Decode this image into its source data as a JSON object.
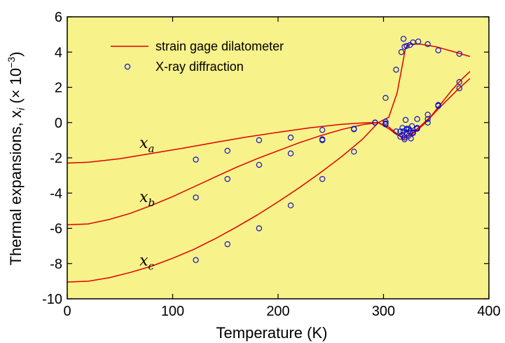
{
  "chart_data": {
    "type": "scatter",
    "title": "",
    "xlabel": "Temperature (K)",
    "ylabel": "Thermal expansions, x",
    "ylabel_sub": "i",
    "ylabel_unit_open": " (× 10",
    "ylabel_exp": "−3",
    "ylabel_unit_close": ")",
    "xlim": [
      0,
      400
    ],
    "ylim": [
      -10,
      6
    ],
    "xticks": [
      0,
      100,
      200,
      300,
      400
    ],
    "yticks": [
      -10,
      -8,
      -6,
      -4,
      -2,
      0,
      2,
      4,
      6
    ],
    "grid": false,
    "background": "#f7f28a",
    "line_color": "#e00000",
    "marker_color": "#1010c8",
    "legend": {
      "position": "top-left",
      "entries": [
        {
          "label": "strain gage dilatometer",
          "kind": "line"
        },
        {
          "label": "X-ray diffraction",
          "kind": "marker"
        }
      ]
    },
    "curve_labels": [
      {
        "main": "x",
        "sub": "a",
        "x": 22,
        "y": -1.45
      },
      {
        "main": "x",
        "sub": "b",
        "x": 22,
        "y": -4.5
      },
      {
        "main": "x",
        "sub": "c",
        "x": 22,
        "y": -8.1
      }
    ],
    "series": [
      {
        "curve": "a",
        "line": [
          [
            0,
            -2.3
          ],
          [
            20,
            -2.25
          ],
          [
            50,
            -2.05
          ],
          [
            80,
            -1.75
          ],
          [
            110,
            -1.45
          ],
          [
            140,
            -1.13
          ],
          [
            170,
            -0.82
          ],
          [
            200,
            -0.55
          ],
          [
            230,
            -0.3
          ],
          [
            260,
            -0.1
          ],
          [
            280,
            -0.02
          ],
          [
            295,
            0
          ],
          [
            305,
            0.3
          ],
          [
            313,
            1.7
          ],
          [
            318,
            3.3
          ],
          [
            321,
            4.25
          ],
          [
            325,
            4.45
          ],
          [
            335,
            4.45
          ],
          [
            350,
            4.3
          ],
          [
            365,
            4.05
          ],
          [
            382,
            3.75
          ]
        ],
        "points": [
          [
            122,
            -2.1
          ],
          [
            152,
            -1.6
          ],
          [
            182,
            -1.0
          ],
          [
            212,
            -0.85
          ],
          [
            242,
            -0.42
          ],
          [
            242,
            -1.0
          ],
          [
            272,
            -0.35
          ],
          [
            292,
            0.0
          ],
          [
            302,
            0.05
          ],
          [
            312,
            -0.5
          ],
          [
            316,
            -0.8
          ],
          [
            319,
            -0.5
          ],
          [
            322,
            -0.35
          ],
          [
            325,
            -0.5
          ],
          [
            328,
            -0.55
          ],
          [
            332,
            -0.3
          ],
          [
            342,
            0.0
          ],
          [
            352,
            1.0
          ],
          [
            372,
            1.95
          ],
          [
            302,
            1.4
          ],
          [
            312,
            3.0
          ],
          [
            317,
            4.0
          ],
          [
            319,
            4.75
          ],
          [
            320,
            4.3
          ],
          [
            322,
            4.35
          ],
          [
            325,
            4.4
          ],
          [
            328,
            4.55
          ],
          [
            333,
            4.6
          ],
          [
            342,
            4.45
          ],
          [
            352,
            4.1
          ],
          [
            372,
            3.9
          ]
        ]
      },
      {
        "curve": "b",
        "line": [
          [
            0,
            -5.8
          ],
          [
            20,
            -5.75
          ],
          [
            40,
            -5.5
          ],
          [
            60,
            -5.15
          ],
          [
            80,
            -4.7
          ],
          [
            100,
            -4.2
          ],
          [
            120,
            -3.65
          ],
          [
            140,
            -3.1
          ],
          [
            160,
            -2.55
          ],
          [
            180,
            -2.05
          ],
          [
            200,
            -1.6
          ],
          [
            220,
            -1.15
          ],
          [
            240,
            -0.75
          ],
          [
            260,
            -0.4
          ],
          [
            280,
            -0.12
          ],
          [
            295,
            0
          ],
          [
            305,
            -0.25
          ],
          [
            313,
            -0.65
          ],
          [
            319,
            -0.95
          ],
          [
            325,
            -0.7
          ],
          [
            335,
            -0.2
          ],
          [
            345,
            0.35
          ],
          [
            355,
            1.1
          ],
          [
            365,
            1.85
          ],
          [
            375,
            2.5
          ],
          [
            382,
            2.9
          ]
        ],
        "points": [
          [
            122,
            -4.25
          ],
          [
            152,
            -3.2
          ],
          [
            182,
            -2.4
          ],
          [
            212,
            -1.75
          ],
          [
            242,
            -0.95
          ],
          [
            272,
            -0.38
          ],
          [
            292,
            0.0
          ],
          [
            302,
            -0.1
          ],
          [
            316,
            -0.5
          ],
          [
            318,
            -0.7
          ],
          [
            320,
            -0.85
          ],
          [
            322,
            -0.6
          ],
          [
            324,
            -0.35
          ],
          [
            327,
            -0.2
          ],
          [
            332,
            0.2
          ],
          [
            342,
            0.45
          ],
          [
            352,
            0.95
          ],
          [
            372,
            2.3
          ]
        ]
      },
      {
        "curve": "c",
        "line": [
          [
            0,
            -9.05
          ],
          [
            20,
            -9.0
          ],
          [
            40,
            -8.8
          ],
          [
            60,
            -8.5
          ],
          [
            80,
            -8.15
          ],
          [
            100,
            -7.7
          ],
          [
            120,
            -7.2
          ],
          [
            140,
            -6.6
          ],
          [
            160,
            -5.95
          ],
          [
            180,
            -5.25
          ],
          [
            200,
            -4.5
          ],
          [
            220,
            -3.7
          ],
          [
            240,
            -2.85
          ],
          [
            260,
            -1.95
          ],
          [
            280,
            -0.95
          ],
          [
            295,
            0
          ],
          [
            305,
            -0.35
          ],
          [
            313,
            -0.7
          ],
          [
            320,
            -0.85
          ],
          [
            330,
            -0.55
          ],
          [
            340,
            0.0
          ],
          [
            350,
            0.65
          ],
          [
            360,
            1.25
          ],
          [
            370,
            1.85
          ],
          [
            382,
            2.5
          ]
        ],
        "points": [
          [
            122,
            -7.8
          ],
          [
            152,
            -6.9
          ],
          [
            182,
            -6.0
          ],
          [
            212,
            -4.7
          ],
          [
            242,
            -3.2
          ],
          [
            272,
            -1.65
          ],
          [
            292,
            0.0
          ],
          [
            302,
            -0.05
          ],
          [
            318,
            -0.3
          ],
          [
            320,
            -0.95
          ],
          [
            321,
            0.15
          ],
          [
            322,
            -0.4
          ],
          [
            324,
            -0.75
          ],
          [
            326,
            -0.9
          ],
          [
            328,
            -0.6
          ],
          [
            332,
            -0.35
          ],
          [
            342,
            0.2
          ],
          [
            352,
            0.95
          ]
        ]
      }
    ]
  }
}
